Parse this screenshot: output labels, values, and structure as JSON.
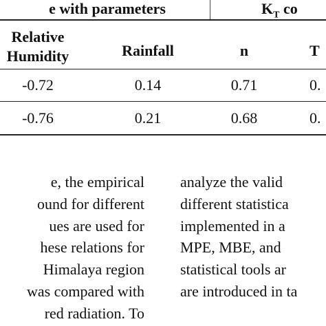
{
  "table": {
    "group_headers": [
      "e with parameters",
      {
        "main": "K",
        "sub": "T",
        "rest": " co"
      }
    ],
    "columns": [
      "Relative Humidity",
      "Rainfall",
      "n",
      "T"
    ],
    "rows": [
      [
        "-0.72",
        "0.14",
        "0.71",
        "0."
      ],
      [
        "-0.76",
        "0.21",
        "0.68",
        "0."
      ]
    ]
  },
  "body": {
    "left_lines": [
      "e,  the  empirical",
      "ound  for  different",
      "ues  are  used  for",
      "hese  relations  for",
      "Himalaya  region",
      "was  compared  with",
      "red  radiation.  To"
    ],
    "right_lines": [
      "analyze  the  valid",
      "different  statistica",
      "implemented  in  a",
      "MPE,  MBE,  and",
      "statistical  tools  ar",
      "are introduced in ta"
    ]
  }
}
